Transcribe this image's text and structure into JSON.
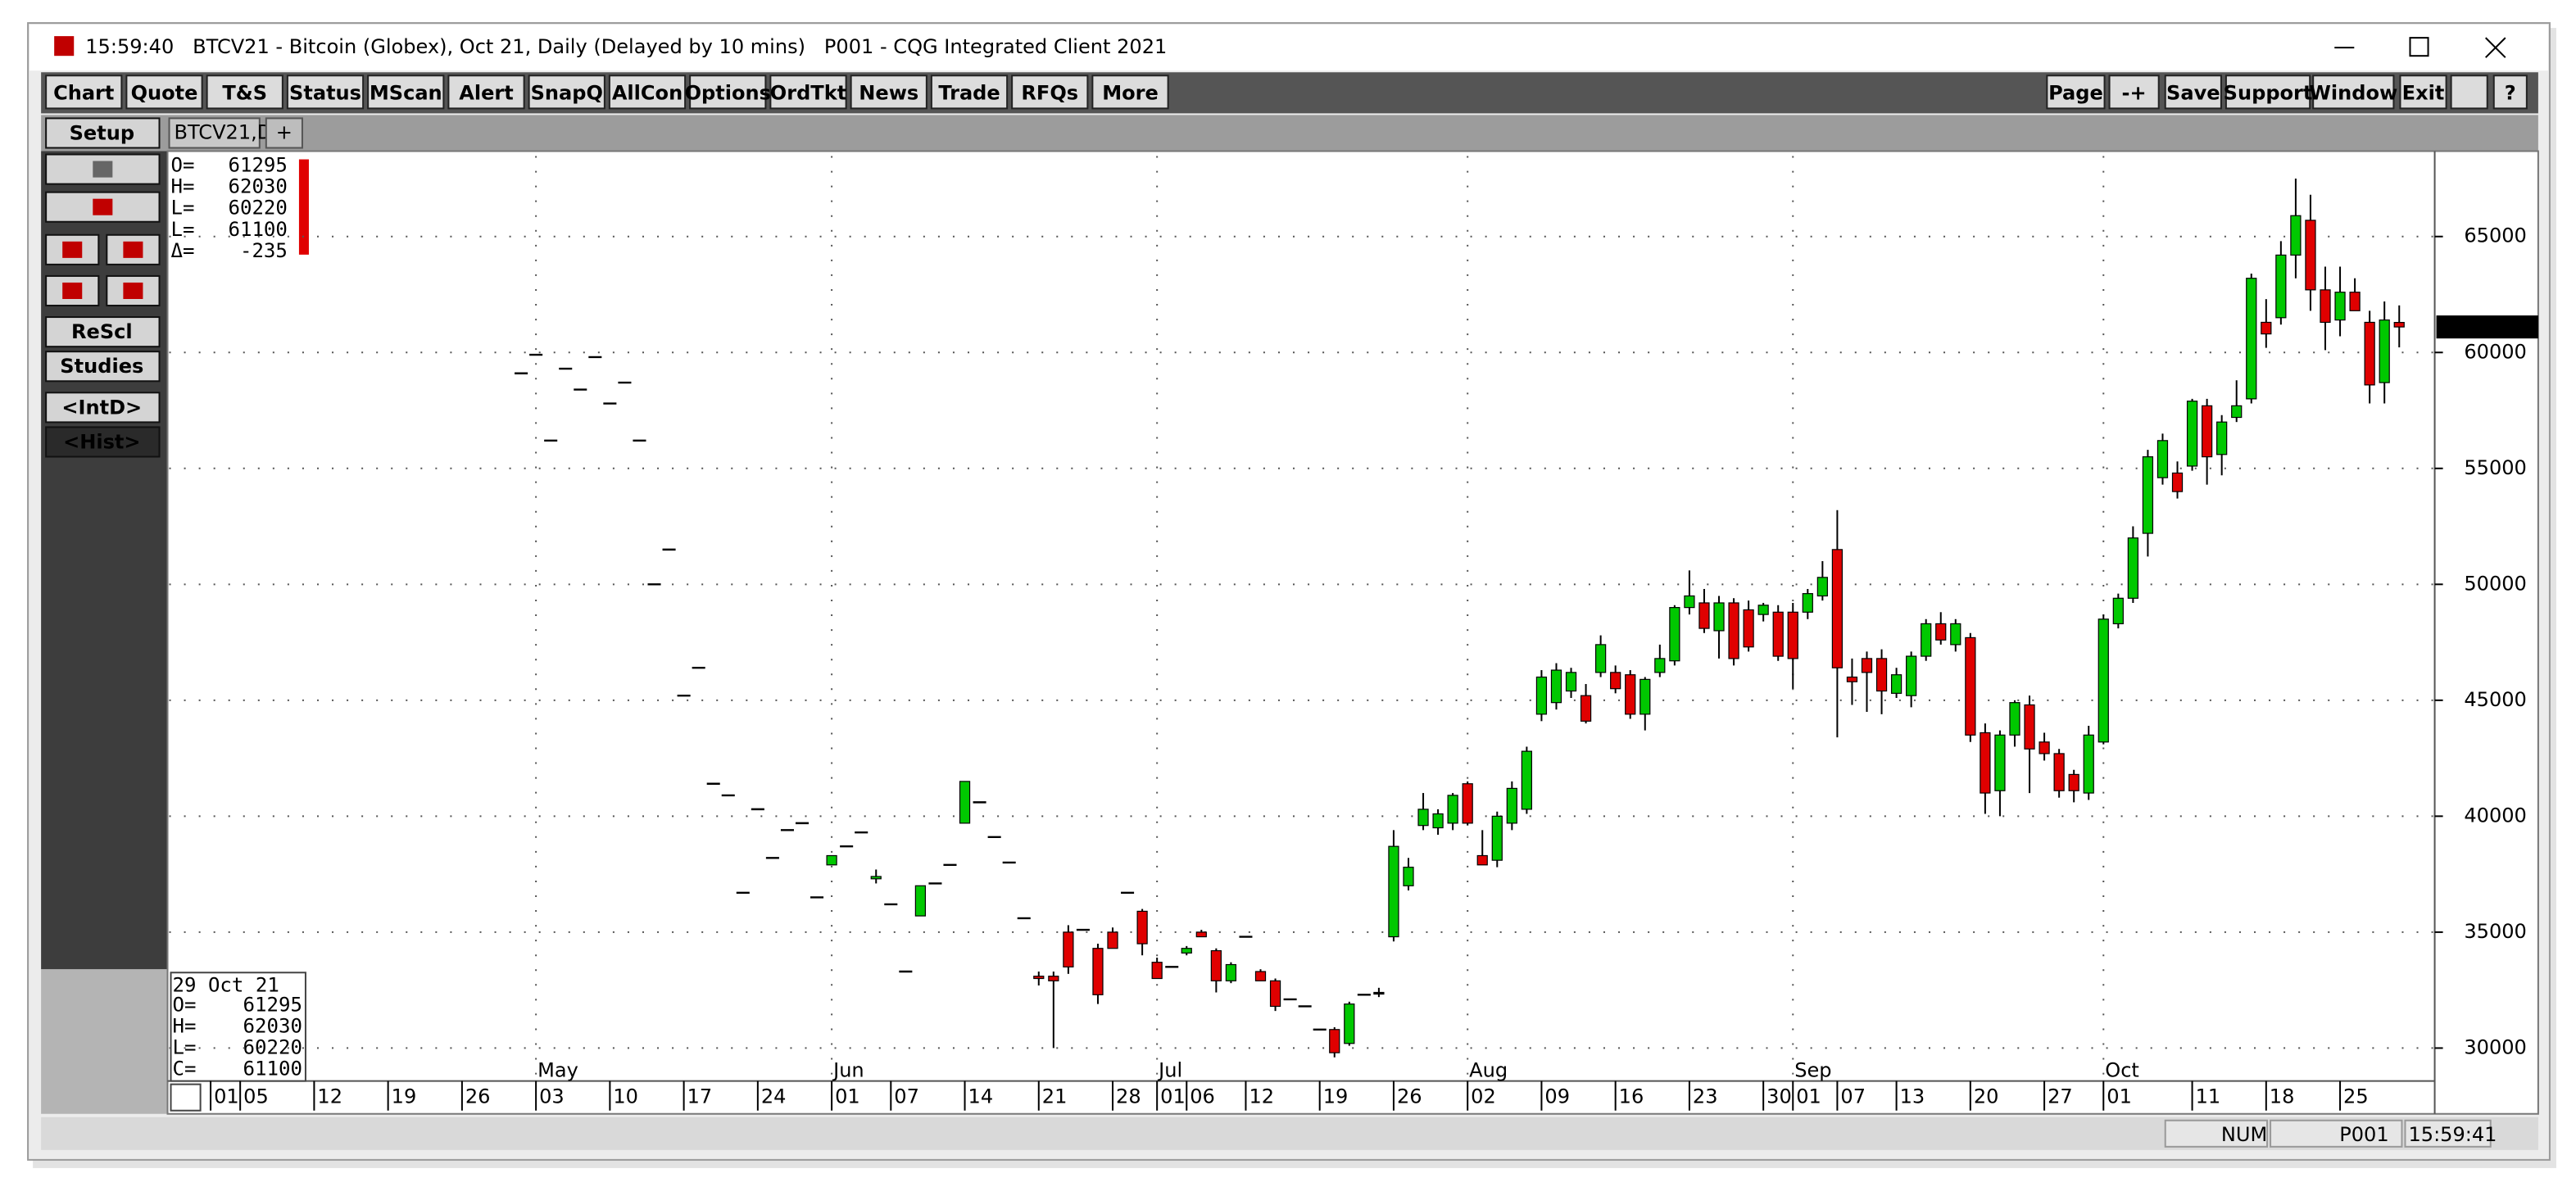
{
  "window": {
    "title": "15:59:40   BTCV21 - Bitcoin (Globex), Oct 21, Daily (Delayed by 10 mins)   P001 - CQG Integrated Client 2021"
  },
  "toolbar": {
    "buttons": [
      "Chart",
      "Quote",
      "T&S",
      "Status",
      "MScan",
      "Alert",
      "SnapQ",
      "AllCon",
      "Options",
      "OrdTkt",
      "News",
      "Trade",
      "RFQs",
      "More"
    ],
    "right_buttons": [
      "Page",
      "-+",
      "Save",
      "Support",
      "Window",
      "Exit",
      "?"
    ]
  },
  "tabs": [
    "BTCV21,D",
    "+"
  ],
  "left_panel": {
    "buttons": [
      "Setup",
      "ReScl",
      "Studies",
      "<IntD>",
      "<Hist>"
    ]
  },
  "ohlc_box": [
    {
      "label": "O=",
      "value": 61295
    },
    {
      "label": "H=",
      "value": 62030
    },
    {
      "label": "L=",
      "value": 60220
    },
    {
      "label": "L=",
      "value": 61100
    },
    {
      "label": "Δ=",
      "value": -235
    }
  ],
  "cursor_box": {
    "date": "29 Oct 21",
    "rows": [
      {
        "label": "O=",
        "value": 61295
      },
      {
        "label": "H=",
        "value": 62030
      },
      {
        "label": "L=",
        "value": 60220
      },
      {
        "label": "C=",
        "value": 61100
      }
    ]
  },
  "status_bar": [
    "NUM",
    "P001",
    "15:59:41"
  ],
  "chart_data": {
    "type": "candlestick",
    "x": [
      24,
      25,
      26,
      27,
      28,
      29,
      30,
      31,
      32,
      33,
      34,
      35,
      36,
      37,
      38,
      39,
      40,
      41,
      42,
      43,
      44,
      45,
      46,
      47,
      48,
      49,
      50,
      51,
      52,
      53,
      54,
      55,
      56,
      57,
      58,
      59,
      60,
      61,
      62,
      63,
      64,
      65,
      66,
      67,
      68,
      69,
      70,
      71,
      72,
      73,
      74,
      75,
      76,
      77,
      78,
      79,
      80,
      81,
      82,
      83,
      84,
      85,
      86,
      87,
      88,
      89,
      90,
      91,
      92,
      93,
      94,
      95,
      96,
      97,
      98,
      99,
      100,
      101,
      102,
      103,
      104,
      105,
      106,
      107,
      108,
      109,
      110,
      111,
      112,
      113,
      114,
      115,
      116,
      117,
      118,
      119,
      120,
      121,
      122,
      123,
      124,
      125,
      126,
      127,
      128,
      129,
      130,
      131,
      132,
      133,
      134,
      135,
      136,
      137,
      138,
      139,
      140,
      141,
      142,
      143,
      144,
      145,
      146,
      147,
      148,
      149,
      150,
      151
    ],
    "open": [
      59100,
      59900,
      56200,
      59300,
      58400,
      59800,
      57800,
      58700,
      56200,
      50000,
      51500,
      45200,
      46400,
      41400,
      40900,
      36700,
      40300,
      38200,
      39400,
      39700,
      36500,
      37900,
      38700,
      39300,
      37300,
      36200,
      33300,
      35700,
      37100,
      37900,
      39700,
      40600,
      39100,
      38000,
      35600,
      33100,
      33100,
      35000,
      35100,
      34300,
      35000,
      36700,
      35900,
      33700,
      33500,
      34100,
      35000,
      34200,
      32900,
      34800,
      33300,
      32900,
      32100,
      31800,
      30800,
      30800,
      30200,
      32300,
      32400,
      34800,
      37000,
      39600,
      39500,
      39700,
      41400,
      38300,
      38100,
      39700,
      40300,
      44400,
      44900,
      45400,
      45200,
      46200,
      46200,
      46100,
      44400,
      46200,
      46700,
      49000,
      49200,
      48000,
      49200,
      48900,
      48700,
      48800,
      48800,
      48800,
      49500,
      51500,
      46000,
      46800,
      46800,
      45300,
      45200,
      46900,
      48300,
      47400,
      47700,
      43600,
      41100,
      43500,
      44800,
      43200,
      42700,
      41800,
      41000,
      43200,
      48300,
      49400,
      52200,
      54600,
      54800,
      55100,
      57700,
      55600,
      57200,
      58000,
      61300,
      61500,
      64200,
      65700,
      62700,
      61400,
      62600,
      61300,
      58700,
      61295
    ],
    "high": [
      59100,
      59900,
      56200,
      59300,
      58400,
      59800,
      57800,
      58700,
      56200,
      50000,
      51500,
      45200,
      46400,
      41400,
      40900,
      36700,
      40300,
      38200,
      39400,
      39700,
      36500,
      38300,
      38700,
      39300,
      37700,
      36200,
      33300,
      37000,
      37100,
      37900,
      41500,
      40600,
      39100,
      38000,
      35600,
      33300,
      33300,
      35300,
      35100,
      34500,
      35200,
      36700,
      36000,
      33900,
      33500,
      34400,
      35100,
      34300,
      33700,
      34800,
      33400,
      33000,
      32100,
      31800,
      30800,
      30900,
      32000,
      32300,
      32600,
      39400,
      38200,
      41000,
      40300,
      41000,
      41500,
      39400,
      40200,
      41500,
      43000,
      46300,
      46600,
      46400,
      45700,
      47800,
      46500,
      46300,
      46000,
      47400,
      49100,
      50600,
      49800,
      49500,
      49400,
      49300,
      49200,
      49100,
      49200,
      49800,
      51000,
      53200,
      46800,
      47100,
      47200,
      46400,
      47100,
      48500,
      48800,
      48500,
      47900,
      44000,
      43700,
      45000,
      45200,
      43600,
      42900,
      42000,
      43900,
      48700,
      49600,
      52500,
      55800,
      56500,
      55300,
      58000,
      58000,
      57300,
      58800,
      63400,
      62300,
      64800,
      67500,
      66800,
      63700,
      63700,
      63200,
      61800,
      62200,
      62030
    ],
    "low": [
      59100,
      59900,
      56200,
      59300,
      58400,
      59800,
      57800,
      58700,
      56200,
      50000,
      51500,
      45200,
      46400,
      41400,
      40900,
      36700,
      40300,
      38200,
      39400,
      39700,
      36500,
      37900,
      38700,
      39300,
      37100,
      36200,
      33300,
      35700,
      37100,
      37900,
      39700,
      40600,
      39100,
      38000,
      35600,
      32700,
      30000,
      33200,
      35100,
      31900,
      34300,
      36700,
      34000,
      33000,
      33500,
      34000,
      34800,
      32400,
      32800,
      34800,
      32900,
      31600,
      32100,
      31800,
      30800,
      29600,
      30100,
      32300,
      32200,
      34600,
      36800,
      39400,
      39200,
      39400,
      39600,
      37900,
      37800,
      39400,
      40100,
      44100,
      44600,
      45100,
      44000,
      46000,
      45300,
      44200,
      43700,
      46000,
      46500,
      48700,
      47900,
      46800,
      46500,
      47100,
      48400,
      46700,
      45500,
      48500,
      49300,
      43400,
      44800,
      44500,
      44400,
      45100,
      44700,
      46700,
      47400,
      47100,
      43200,
      40100,
      40000,
      43000,
      41000,
      42400,
      40800,
      40600,
      40700,
      43100,
      48100,
      49200,
      51200,
      54300,
      53700,
      54900,
      54300,
      54700,
      57000,
      57800,
      60200,
      61200,
      63200,
      61800,
      60100,
      60700,
      61800,
      57800,
      57800,
      60220
    ],
    "close": [
      59100,
      59900,
      56200,
      59300,
      58400,
      59800,
      57800,
      58700,
      56200,
      50000,
      51500,
      45200,
      46400,
      41400,
      40900,
      36700,
      40300,
      38200,
      39400,
      39700,
      36500,
      38300,
      38700,
      39300,
      37400,
      36200,
      33300,
      37000,
      37100,
      37900,
      41500,
      40600,
      39100,
      38000,
      35600,
      33000,
      32900,
      33500,
      35100,
      32300,
      34300,
      36700,
      34500,
      33000,
      33500,
      34300,
      34800,
      32900,
      33600,
      34800,
      32900,
      31800,
      32100,
      31800,
      30800,
      29800,
      31900,
      32300,
      32400,
      38700,
      37800,
      40300,
      40100,
      40900,
      39700,
      37900,
      40000,
      41200,
      42800,
      46000,
      46300,
      46200,
      44100,
      47400,
      45500,
      44400,
      45900,
      46800,
      49000,
      49500,
      48100,
      49200,
      46800,
      47300,
      49100,
      46900,
      46800,
      49600,
      50300,
      46400,
      45800,
      46200,
      45400,
      46100,
      46900,
      48300,
      47600,
      48300,
      43500,
      41000,
      43500,
      44900,
      42900,
      42700,
      41100,
      41100,
      43500,
      48500,
      49400,
      52000,
      55500,
      56200,
      54000,
      57900,
      55500,
      57000,
      57700,
      63200,
      60800,
      64200,
      65900,
      62700,
      61300,
      62600,
      61800,
      58600,
      61400,
      61100
    ],
    "up_color": "#00c800",
    "down_color": "#e00000",
    "flat_color": "#000000",
    "xlim": [
      0.2,
      153.4
    ],
    "ylim": [
      28580,
      68470
    ],
    "yticks": [
      30000,
      35000,
      40000,
      45000,
      50000,
      55000,
      60000,
      65000
    ],
    "xticks": [
      {
        "value": 3,
        "label": "01"
      },
      {
        "value": 5,
        "label": "05"
      },
      {
        "value": 10,
        "label": "12"
      },
      {
        "value": 15,
        "label": "19"
      },
      {
        "value": 20,
        "label": "26"
      },
      {
        "value": 25,
        "label": "03"
      },
      {
        "value": 30,
        "label": "10"
      },
      {
        "value": 35,
        "label": "17"
      },
      {
        "value": 40,
        "label": "24"
      },
      {
        "value": 45,
        "label": "01"
      },
      {
        "value": 49,
        "label": "07"
      },
      {
        "value": 54,
        "label": "14"
      },
      {
        "value": 59,
        "label": "21"
      },
      {
        "value": 64,
        "label": "28"
      },
      {
        "value": 67,
        "label": "01"
      },
      {
        "value": 69,
        "label": "06"
      },
      {
        "value": 73,
        "label": "12"
      },
      {
        "value": 78,
        "label": "19"
      },
      {
        "value": 83,
        "label": "26"
      },
      {
        "value": 88,
        "label": "02"
      },
      {
        "value": 93,
        "label": "09"
      },
      {
        "value": 98,
        "label": "16"
      },
      {
        "value": 103,
        "label": "23"
      },
      {
        "value": 108,
        "label": "30"
      },
      {
        "value": 110,
        "label": "01"
      },
      {
        "value": 113,
        "label": "07"
      },
      {
        "value": 117,
        "label": "13"
      },
      {
        "value": 122,
        "label": "20"
      },
      {
        "value": 127,
        "label": "27"
      },
      {
        "value": 131,
        "label": "01"
      },
      {
        "value": 137,
        "label": "11"
      },
      {
        "value": 142,
        "label": "18"
      },
      {
        "value": 147,
        "label": "25"
      }
    ],
    "month_labels": [
      {
        "value": 25,
        "label": "May"
      },
      {
        "value": 45,
        "label": "Jun"
      },
      {
        "value": 67,
        "label": "Jul"
      },
      {
        "value": 88,
        "label": "Aug"
      },
      {
        "value": 110,
        "label": "Sep"
      },
      {
        "value": 131,
        "label": "Oct"
      }
    ],
    "grid": true,
    "last_price": 61100
  }
}
